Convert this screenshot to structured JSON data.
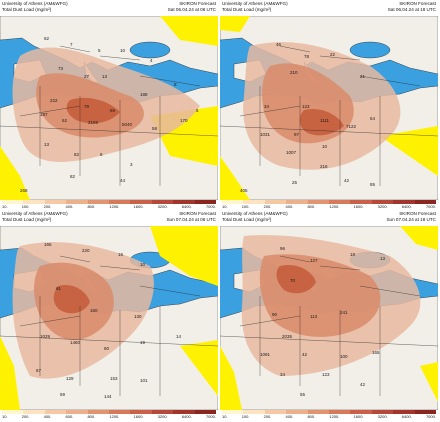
{
  "colors": {
    "ocean": "#3aa0e0",
    "land_clean": "#f2efe9",
    "low_dust": "#fff200",
    "dust_light": "#e9b8a0",
    "dust_mid": "#d98b6a",
    "dust_high": "#c45a3a",
    "border": "#222222"
  },
  "panels": [
    {
      "title_left_1": "University of Athens (AM&WFG)",
      "title_left_2": "Total Dust Load (mg/m²)",
      "title_right_1": "SKIRON Forecast",
      "title_right_2": "Sat 06.04.24 at 06 UTC",
      "colorbar_ticks": [
        "10.",
        "100.",
        "200.",
        "400.",
        "800.",
        "1200.",
        "1600.",
        "3200.",
        "6400.",
        "7000."
      ],
      "values": [
        "62",
        "7",
        "5",
        "10",
        "4",
        "73",
        "27",
        "13",
        "222",
        "79",
        "69",
        "188",
        "8",
        "187",
        "62",
        "2169",
        "5040",
        "58",
        "170",
        "5",
        "13",
        "82",
        "6",
        "3",
        "82",
        "44",
        "268"
      ]
    },
    {
      "title_left_1": "University of Athens (AM&WFG)",
      "title_left_2": "Total Dust Load (mg/m²)",
      "title_right_1": "SKIRON Forecast",
      "title_right_2": "Sat 06.04.24 at 18 UTC",
      "colorbar_ticks": [
        "10.",
        "100.",
        "200.",
        "400.",
        "800.",
        "1200.",
        "1600.",
        "3200.",
        "6400.",
        "7000."
      ],
      "values": [
        "46",
        "78",
        "22",
        "210",
        "21",
        "34",
        "123",
        "1111",
        "7122",
        "64",
        "1031",
        "97",
        "10",
        "1007",
        "216",
        "25",
        "42",
        "85",
        "405"
      ]
    },
    {
      "title_left_1": "University of Athens (AM&WFG)",
      "title_left_2": "Total Dust Load (mg/m²)",
      "title_right_1": "SKIRON Forecast",
      "title_right_2": "Sun 07.04.24 at 06 UTC",
      "colorbar_ticks": [
        "10.",
        "200.",
        "400.",
        "600.",
        "800.",
        "1200.",
        "1600.",
        "3200.",
        "6400.",
        "7000."
      ],
      "values": [
        "166",
        "220",
        "16",
        "10",
        "61",
        "150",
        "130",
        "1029",
        "1460",
        "60",
        "19",
        "14",
        "67",
        "129",
        "153",
        "101",
        "59",
        "144"
      ]
    },
    {
      "title_left_1": "University of Athens (AM&WFG)",
      "title_left_2": "Total Dust Load (mg/m²)",
      "title_right_1": "SKIRON Forecast",
      "title_right_2": "Sun 07.04.24 at 18 UTC",
      "colorbar_ticks": [
        "10.",
        "100.",
        "200.",
        "400.",
        "800.",
        "1200.",
        "1600.",
        "3200.",
        "6400.",
        "7000."
      ],
      "values": [
        "96",
        "127",
        "18",
        "13",
        "70",
        "90",
        "113",
        "241",
        "2035",
        "1091",
        "42",
        "100",
        "165",
        "34",
        "123",
        "42",
        "55"
      ]
    }
  ]
}
